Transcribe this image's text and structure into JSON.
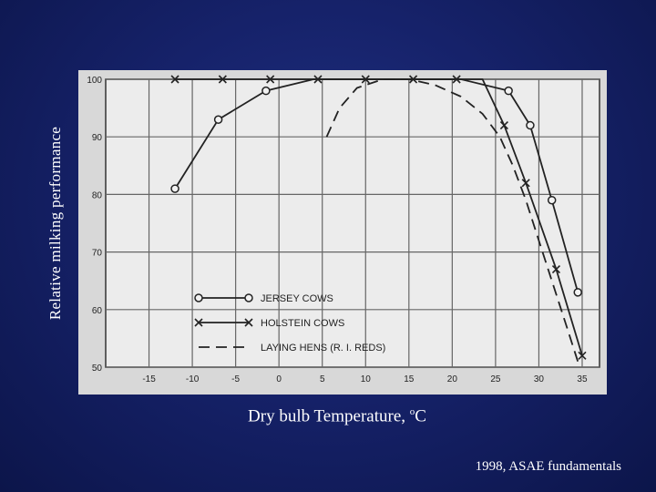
{
  "slide": {
    "ylabel": "Relative milking performance",
    "xlabel_text": "Dry bulb Temperature, ",
    "xlabel_deg": "o",
    "xlabel_unit": "C",
    "credit": "1998, ASAE fundamentals"
  },
  "chart_data": {
    "type": "line",
    "title": "",
    "xlabel": "Dry bulb Temperature, °C",
    "ylabel": "Relative milking performance",
    "xlim": [
      -20,
      37
    ],
    "ylim": [
      50,
      100
    ],
    "xticks": [
      -15,
      -10,
      -5,
      0,
      5,
      10,
      15,
      20,
      25,
      30,
      35
    ],
    "yticks": [
      50,
      60,
      70,
      80,
      90,
      100
    ],
    "grid": true,
    "legend_position": "bottom-left",
    "series": [
      {
        "name": "JERSEY COWS",
        "marker": "circle",
        "dash": "solid",
        "color": "#222222",
        "x": [
          -12,
          -7,
          -1.5,
          4,
          10,
          15,
          21,
          26.5,
          29,
          31.5,
          34.5
        ],
        "y": [
          81,
          93,
          98,
          100,
          100,
          100,
          100,
          98,
          92,
          79,
          63
        ],
        "marker_x": [
          -12,
          -7,
          -1.5,
          26.5,
          29,
          31.5,
          34.5
        ],
        "marker_y": [
          81,
          93,
          98,
          98,
          92,
          79,
          63
        ]
      },
      {
        "name": "HOLSTEIN COWS",
        "marker": "x",
        "dash": "solid",
        "color": "#222222",
        "x": [
          -12,
          -6.5,
          -1,
          4.5,
          10,
          15.5,
          20.5,
          23.5,
          26,
          28.5,
          32,
          35
        ],
        "y": [
          100,
          100,
          100,
          100,
          100,
          100,
          100,
          100,
          92,
          82,
          67,
          52
        ],
        "marker_x": [
          -12,
          -6.5,
          -1,
          4.5,
          10,
          15.5,
          20.5,
          26,
          28.5,
          32,
          35
        ],
        "marker_y": [
          100,
          100,
          100,
          100,
          100,
          100,
          100,
          92,
          82,
          67,
          52
        ]
      },
      {
        "name": "LAYING HENS (R. I. REDS)",
        "marker": "none",
        "dash": "dashed",
        "color": "#222222",
        "x": [
          5.5,
          7,
          9,
          12,
          15,
          18,
          21,
          23.5,
          25.5,
          27,
          28.5,
          30,
          31.5,
          33,
          34.5
        ],
        "y": [
          90,
          95,
          98.5,
          100,
          100,
          99,
          97,
          94,
          90,
          85,
          79,
          72,
          65,
          58,
          51
        ]
      }
    ]
  }
}
